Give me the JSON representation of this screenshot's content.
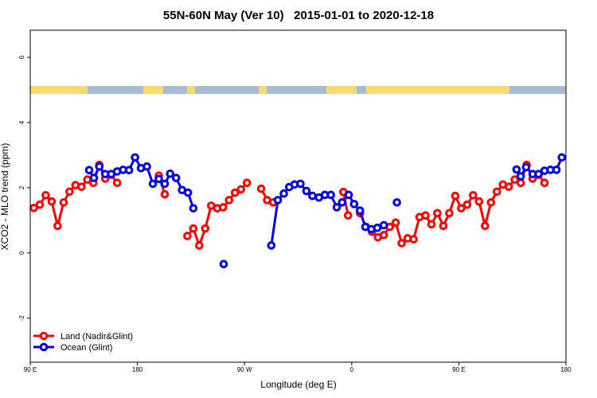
{
  "chart_data": {
    "type": "line",
    "title": "55N-60N May (Ver 10)   2015-01-01 to 2020-12-18",
    "x_label": "Longitude (deg E)",
    "y_label": "XCO2 - MLO trend (ppm)",
    "xlim": [
      90,
      540
    ],
    "xticks": [
      {
        "value": 90,
        "label": "90 E"
      },
      180,
      {
        "value": 270,
        "label": "90 W"
      },
      {
        "value": 360,
        "label": "0"
      },
      {
        "value": 450,
        "label": "90 E"
      },
      {
        "value": 540,
        "label": "180"
      }
    ],
    "ylim": [
      -3.35,
      6.83
    ],
    "yticks": [
      -2,
      0,
      2,
      4,
      6
    ],
    "legend": "bottom-left",
    "series": [
      {
        "name": "Land (Nadir&Glint)",
        "color": "#ff0000",
        "x": [
          93,
          98,
          103,
          108,
          113,
          118,
          123,
          128,
          133,
          138,
          143,
          148,
          153,
          158,
          163,
          180,
          198,
          203,
          212,
          222,
          227,
          232,
          237,
          242,
          247,
          252,
          257,
          262,
          267,
          272,
          278,
          284,
          289,
          294,
          320,
          353,
          357,
          362,
          367,
          372,
          377,
          382,
          387,
          392,
          397,
          402,
          407,
          412,
          417,
          422,
          427,
          432,
          437,
          442,
          447,
          452,
          457,
          462,
          467,
          472,
          477,
          482,
          487,
          492,
          497,
          502,
          507,
          512,
          517,
          522
        ],
        "values": [
          1.38,
          1.48,
          1.77,
          1.58,
          0.83,
          1.55,
          1.88,
          2.08,
          2.03,
          2.25,
          2.15,
          2.7,
          2.28,
          2.4,
          2.15,
          null,
          2.37,
          1.8,
          null,
          0.52,
          0.75,
          0.23,
          0.75,
          1.45,
          1.37,
          1.4,
          1.62,
          1.85,
          1.95,
          2.15,
          null,
          1.97,
          1.62,
          1.55,
          null,
          1.87,
          1.15,
          null,
          1.22,
          0.8,
          0.65,
          0.48,
          0.55,
          0.8,
          0.93,
          0.3,
          0.45,
          0.42,
          1.1,
          1.15,
          0.88,
          1.22,
          0.83,
          1.22,
          1.75,
          1.37,
          1.48,
          1.77,
          1.58,
          0.83,
          1.55,
          1.88,
          2.1,
          2.03,
          2.25,
          2.15,
          2.7,
          2.28,
          2.4,
          2.15
        ]
      },
      {
        "name": "Ocean (Glint)",
        "color": "#0000ee",
        "x": [
          139.5,
          143.5,
          148,
          153,
          158,
          163,
          168,
          173,
          178,
          183,
          188,
          193,
          198,
          203,
          207.5,
          212.5,
          217.5,
          222.5,
          227,
          240,
          252.5,
          270,
          292.5,
          298,
          303,
          307.5,
          312,
          317,
          322,
          327,
          332.5,
          337.5,
          342.5,
          347.5,
          352,
          357.5,
          362,
          367,
          371.5,
          376.5,
          381.5,
          387,
          392,
          398,
          450,
          498.5,
          502,
          506.5,
          512,
          517,
          522,
          527,
          532,
          536.5
        ],
        "values": [
          2.54,
          2.3,
          2.65,
          2.42,
          2.42,
          2.5,
          2.55,
          2.54,
          2.93,
          2.6,
          2.65,
          2.12,
          2.27,
          2.12,
          2.43,
          2.3,
          1.93,
          1.85,
          1.37,
          null,
          -0.34,
          null,
          0.23,
          1.62,
          1.82,
          2.02,
          2.1,
          2.12,
          1.9,
          1.75,
          1.7,
          1.78,
          1.78,
          1.4,
          1.55,
          1.78,
          1.5,
          1.3,
          0.8,
          0.73,
          0.77,
          0.85,
          null,
          1.55,
          null,
          2.56,
          2.35,
          2.63,
          2.42,
          2.42,
          2.52,
          2.55,
          2.55,
          2.93
        ]
      }
    ]
  }
}
